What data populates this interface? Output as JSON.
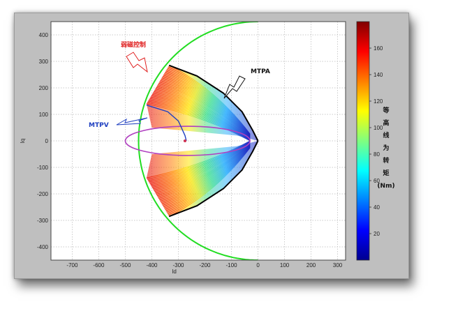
{
  "chart_data": {
    "type": "contour",
    "xlabel": "Id",
    "ylabel": "Iq",
    "xlim": [
      -780,
      330
    ],
    "ylim": [
      -450,
      450
    ],
    "x_ticks": [
      -700,
      -600,
      -500,
      -400,
      -300,
      -200,
      -100,
      0,
      100,
      200,
      300
    ],
    "y_ticks": [
      -400,
      -300,
      -200,
      -100,
      0,
      100,
      200,
      300,
      400
    ],
    "grid": true,
    "colorbar": {
      "range": [
        0,
        180
      ],
      "ticks": [
        20,
        40,
        60,
        80,
        100,
        120,
        140,
        160
      ],
      "label_chars": [
        "等",
        "高",
        "线",
        "为",
        "转",
        "矩",
        "(Nm)"
      ]
    },
    "current_limit_circle": {
      "center": [
        0,
        0
      ],
      "radius": 450,
      "color": "#22dd22"
    },
    "voltage_limit_ellipse": {
      "center": [
        -265,
        0
      ],
      "semi_axis_x": 235,
      "semi_axis_y": 55,
      "color": "#b040c0"
    },
    "mtpa_curve": [
      [
        0,
        0
      ],
      [
        -20,
        40
      ],
      [
        -60,
        110
      ],
      [
        -130,
        180
      ],
      [
        -230,
        245
      ],
      [
        -335,
        285
      ]
    ],
    "mtpv_curve": [
      [
        -270,
        0
      ],
      [
        -275,
        20
      ],
      [
        -300,
        75
      ],
      [
        -340,
        110
      ],
      [
        -420,
        135
      ]
    ],
    "annotations": [
      {
        "text": "弱磁控制",
        "color": "#e02020"
      },
      {
        "text": "MTPA",
        "color": "#111111"
      },
      {
        "text": "MTPV",
        "color": "#2040c0"
      }
    ]
  }
}
